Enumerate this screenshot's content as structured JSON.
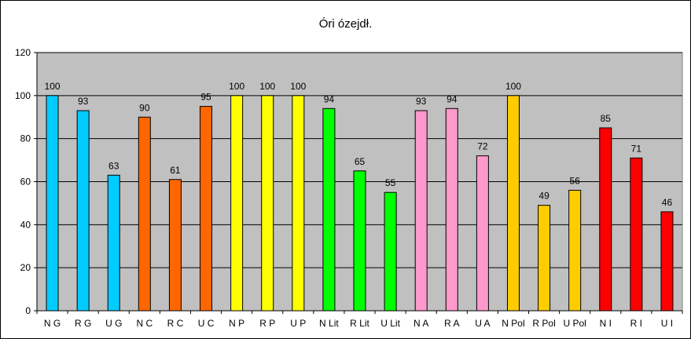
{
  "chart_data": {
    "type": "bar",
    "title": "Óri ózejdł.",
    "categories": [
      "N G",
      "R G",
      "U G",
      "N C",
      "R C",
      "U C",
      "N P",
      "R P",
      "U P",
      "N Lit",
      "R Lit",
      "U Lit",
      "N A",
      "R A",
      "U A",
      "N Pol",
      "R Pol",
      "U Pol",
      "N I",
      "R I",
      "U I"
    ],
    "values": [
      100,
      93,
      63,
      90,
      61,
      95,
      100,
      100,
      100,
      94,
      65,
      55,
      93,
      94,
      72,
      100,
      49,
      56,
      85,
      71,
      46
    ],
    "colors": [
      "#00CCFF",
      "#00CCFF",
      "#00CCFF",
      "#FF6600",
      "#FF6600",
      "#FF6600",
      "#FFFF00",
      "#FFFF00",
      "#FFFF00",
      "#00FF00",
      "#00FF00",
      "#00FF00",
      "#FF99CC",
      "#FF99CC",
      "#FF99CC",
      "#FFCC00",
      "#FFCC00",
      "#FFCC00",
      "#FF0000",
      "#FF0000",
      "#FF0000"
    ],
    "yticks": [
      0,
      20,
      40,
      60,
      80,
      100,
      120
    ],
    "ylim": [
      0,
      120
    ],
    "xlabel": "",
    "ylabel": "",
    "grid": true,
    "legend": "none",
    "plot_background": "#C0C0C0"
  }
}
